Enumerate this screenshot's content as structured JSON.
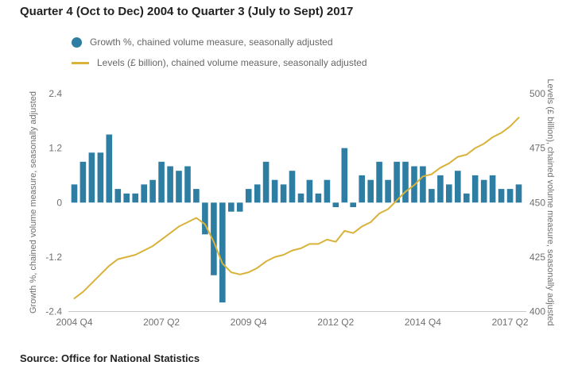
{
  "page": {
    "title": "Quarter 4 (Oct to Dec) 2004 to Quarter 3 (July to Sept) 2017",
    "source_label": "Source:",
    "source_text": "Office for National Statistics"
  },
  "colors": {
    "bar": "#2e7da2",
    "line": "#d9b23a",
    "axis_text": "#707070",
    "axis_line": "#c8c8c8",
    "title_text": "#222222",
    "legend_text": "#666666"
  },
  "legend": [
    {
      "swatch": "circle",
      "label": "Growth %, chained volume measure, seasonally adjusted"
    },
    {
      "swatch": "line",
      "label": "Levels (£ billion), chained volume measure, seasonally adjusted"
    }
  ],
  "chart_data": {
    "type": "bar",
    "subtype": "bar+line dual axis",
    "title": "Quarter 4 (Oct to Dec) 2004 to Quarter 3 (July to Sept) 2017",
    "x": [
      "2004 Q4",
      "2005 Q1",
      "2005 Q2",
      "2005 Q3",
      "2005 Q4",
      "2006 Q1",
      "2006 Q2",
      "2006 Q3",
      "2006 Q4",
      "2007 Q1",
      "2007 Q2",
      "2007 Q3",
      "2007 Q4",
      "2008 Q1",
      "2008 Q2",
      "2008 Q3",
      "2008 Q4",
      "2009 Q1",
      "2009 Q2",
      "2009 Q3",
      "2009 Q4",
      "2010 Q1",
      "2010 Q2",
      "2010 Q3",
      "2010 Q4",
      "2011 Q1",
      "2011 Q2",
      "2011 Q3",
      "2011 Q4",
      "2012 Q1",
      "2012 Q2",
      "2012 Q3",
      "2012 Q4",
      "2013 Q1",
      "2013 Q2",
      "2013 Q3",
      "2013 Q4",
      "2014 Q1",
      "2014 Q2",
      "2014 Q3",
      "2014 Q4",
      "2015 Q1",
      "2015 Q2",
      "2015 Q3",
      "2015 Q4",
      "2016 Q1",
      "2016 Q2",
      "2016 Q3",
      "2016 Q4",
      "2017 Q1",
      "2017 Q2",
      "2017 Q3"
    ],
    "series": [
      {
        "name": "Growth %, chained volume measure, seasonally adjusted",
        "type": "bar",
        "axis": "left",
        "values": [
          0.4,
          0.9,
          1.1,
          1.1,
          1.5,
          0.3,
          0.2,
          0.2,
          0.4,
          0.5,
          0.9,
          0.8,
          0.7,
          0.8,
          0.3,
          -0.7,
          -1.6,
          -2.2,
          -0.2,
          -0.2,
          0.3,
          0.4,
          0.9,
          0.5,
          0.4,
          0.7,
          0.2,
          0.5,
          0.2,
          0.5,
          -0.1,
          1.2,
          -0.1,
          0.6,
          0.5,
          0.9,
          0.5,
          0.9,
          0.9,
          0.8,
          0.8,
          0.3,
          0.6,
          0.4,
          0.7,
          0.2,
          0.6,
          0.5,
          0.6,
          0.3,
          0.3,
          0.4
        ]
      },
      {
        "name": "Levels (£ billion), chained volume measure, seasonally adjusted",
        "type": "line",
        "axis": "right",
        "values": [
          406,
          409,
          413,
          417,
          421,
          424,
          425,
          426,
          428,
          430,
          433,
          436,
          439,
          441,
          443,
          440,
          432,
          422,
          418,
          417,
          418,
          420,
          423,
          425,
          426,
          428,
          429,
          431,
          431,
          433,
          432,
          437,
          436,
          439,
          441,
          445,
          447,
          451,
          455,
          458,
          462,
          463,
          466,
          468,
          471,
          472,
          475,
          477,
          480,
          482,
          485,
          489
        ]
      }
    ],
    "left_axis": {
      "label": "Growth %, chained volume measure, seasonally adjusted",
      "ticks": [
        2.4,
        1.2,
        0,
        -1.2,
        -2.4
      ],
      "range": [
        -2.4,
        2.4
      ]
    },
    "right_axis": {
      "label": "Levels (£ billion), chained volume measure, seasonally adjusted",
      "ticks": [
        500,
        475,
        450,
        425,
        400
      ],
      "range": [
        400,
        500
      ]
    },
    "x_ticks": [
      "2004 Q4",
      "2007 Q2",
      "2009 Q4",
      "2012 Q2",
      "2014 Q4",
      "2017 Q2"
    ],
    "x_tick_indices": [
      0,
      10,
      20,
      30,
      40,
      50
    ],
    "grid": false,
    "legend_position": "top-left"
  }
}
